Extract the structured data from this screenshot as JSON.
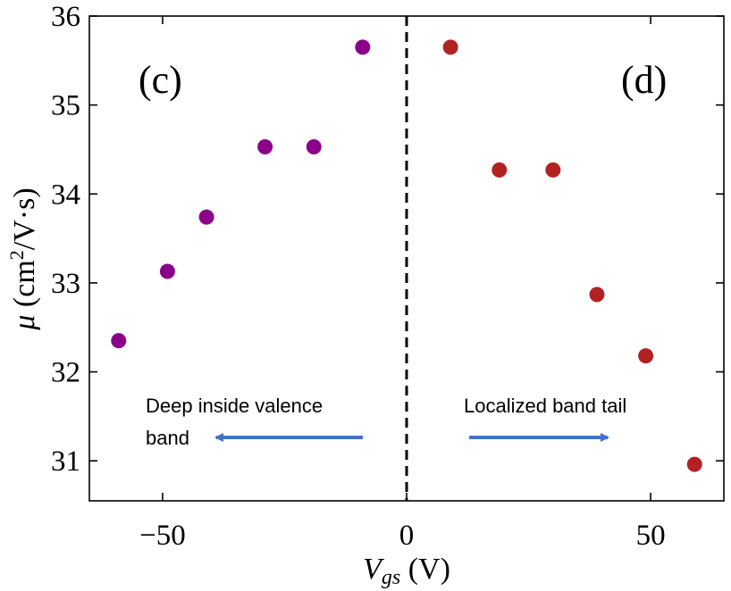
{
  "chart_data": {
    "type": "scatter",
    "title": "",
    "xlabel": "V_gs (V)",
    "xlabel_main": "V",
    "xlabel_sub": "gs",
    "xlabel_unit": " (V)",
    "ylabel": "μ (cm²/V·s)",
    "ylabel_symbol": "μ",
    "ylabel_unit_prefix": " (cm",
    "ylabel_unit_sup": "2",
    "ylabel_unit_suffix": "/V·s)",
    "xlim": [
      -65,
      65
    ],
    "ylim": [
      30.55,
      36
    ],
    "xticks": [
      -50,
      0,
      50
    ],
    "xtick_labels": [
      "−50",
      "0",
      "50"
    ],
    "yticks": [
      31,
      32,
      33,
      34,
      35,
      36
    ],
    "ytick_labels": [
      "31",
      "32",
      "33",
      "34",
      "35",
      "36"
    ],
    "grid": false,
    "legend": "none",
    "series": [
      {
        "color": "#8B008B",
        "points": [
          {
            "x": -59,
            "y": 32.35
          },
          {
            "x": -49,
            "y": 33.13
          },
          {
            "x": -41,
            "y": 33.74
          },
          {
            "x": -29,
            "y": 34.53
          },
          {
            "x": -19,
            "y": 34.53
          },
          {
            "x": -9,
            "y": 35.65
          }
        ]
      },
      {
        "color": "#B22222",
        "points": [
          {
            "x": 9,
            "y": 35.65
          },
          {
            "x": 19,
            "y": 34.27
          },
          {
            "x": 30,
            "y": 34.27
          },
          {
            "x": 39,
            "y": 32.87
          },
          {
            "x": 49,
            "y": 32.18
          },
          {
            "x": 59,
            "y": 30.96
          }
        ]
      }
    ],
    "divider": {
      "x": 0,
      "style": "dashed"
    },
    "panel_labels": {
      "left": "(c)",
      "right": "(d)"
    },
    "annotations": {
      "left_line1": "Deep inside valence",
      "left_line2": "band",
      "right_line1": "Localized band tail",
      "arrow_color": "#4472C4"
    }
  }
}
